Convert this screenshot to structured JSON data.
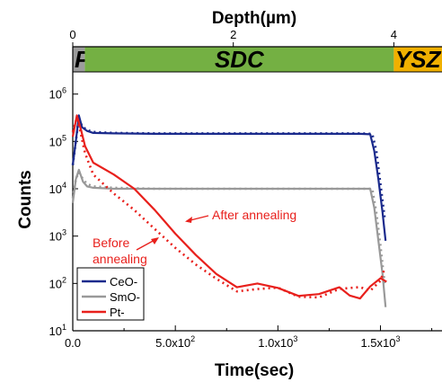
{
  "chart_data": {
    "type": "line",
    "xlabel": "Time(sec)",
    "ylabel": "Counts",
    "top_axis_label": "Depth(µm)",
    "xlim": [
      0,
      1800
    ],
    "ylim_log10": [
      1,
      7
    ],
    "yscale": "log",
    "top_xlim": [
      0,
      4.6
    ],
    "top_ticks": [
      "0",
      "2",
      "4"
    ],
    "top_tick_values": [
      0,
      2,
      4
    ],
    "x_ticks": [
      "0.0",
      "5.0x10",
      "1.0x10",
      "1.5x10"
    ],
    "x_tick_exponents": [
      "",
      "2",
      "3",
      "3"
    ],
    "x_tick_values": [
      0,
      500,
      1000,
      1500
    ],
    "y_tick_bases": [
      "10",
      "10",
      "10",
      "10",
      "10",
      "10"
    ],
    "y_tick_exponents": [
      "1",
      "2",
      "3",
      "4",
      "5",
      "6"
    ],
    "y_tick_values": [
      1,
      2,
      3,
      4,
      5,
      6
    ],
    "layers": [
      {
        "name": "Pt",
        "start": 0,
        "end": 0.15,
        "color": "#9c9c9c"
      },
      {
        "name": "SDC",
        "start": 0.15,
        "end": 4.0,
        "color": "#74b043"
      },
      {
        "name": "YSZ",
        "start": 4.0,
        "end": 4.6,
        "color": "#f0b000"
      }
    ],
    "legend": {
      "position": "bottom-left",
      "entries": [
        {
          "label": "CeO-",
          "color": "#1a2a8c"
        },
        {
          "label": "SmO-",
          "color": "#999999"
        },
        {
          "label": "Pt-",
          "color": "#e8201c"
        }
      ]
    },
    "annotations": {
      "after": "After annealing",
      "before_line1": "Before",
      "before_line2": "annealing",
      "color": "#e8201c"
    },
    "series": [
      {
        "name": "CeO-",
        "condition": "after",
        "color": "#1a2a8c",
        "x": [
          0,
          15,
          30,
          45,
          70,
          100,
          200,
          400,
          600,
          800,
          1000,
          1200,
          1400,
          1450,
          1470,
          1490,
          1510,
          1525
        ],
        "y_log10": [
          4.5,
          5.0,
          5.55,
          5.3,
          5.22,
          5.18,
          5.17,
          5.16,
          5.16,
          5.16,
          5.16,
          5.16,
          5.16,
          5.15,
          4.8,
          4.2,
          3.5,
          2.9
        ]
      },
      {
        "name": "CeO-",
        "condition": "before",
        "color": "#1a2a8c",
        "x": [
          0,
          15,
          30,
          45,
          70,
          100,
          200,
          400,
          600,
          800,
          1000,
          1200,
          1400,
          1460,
          1480,
          1500,
          1520
        ],
        "y_log10": [
          4.5,
          5.0,
          5.5,
          5.32,
          5.24,
          5.2,
          5.18,
          5.17,
          5.17,
          5.17,
          5.17,
          5.17,
          5.17,
          5.16,
          4.8,
          4.1,
          3.4
        ]
      },
      {
        "name": "SmO-",
        "condition": "after",
        "color": "#999999",
        "x": [
          0,
          15,
          30,
          50,
          70,
          100,
          200,
          400,
          600,
          800,
          1000,
          1200,
          1400,
          1450,
          1470,
          1490,
          1510,
          1525
        ],
        "y_log10": [
          3.7,
          4.2,
          4.4,
          4.15,
          4.05,
          4.02,
          4.0,
          4.0,
          4.0,
          4.0,
          4.0,
          4.0,
          4.0,
          4.0,
          3.6,
          2.9,
          2.2,
          1.5
        ]
      },
      {
        "name": "SmO-",
        "condition": "before",
        "color": "#999999",
        "x": [
          0,
          15,
          30,
          50,
          70,
          100,
          200,
          400,
          600,
          800,
          1000,
          1200,
          1400,
          1460,
          1480,
          1500,
          1520
        ],
        "y_log10": [
          3.8,
          4.2,
          4.35,
          4.2,
          4.1,
          4.05,
          4.02,
          4.0,
          4.0,
          4.0,
          4.0,
          4.0,
          4.0,
          4.0,
          3.5,
          2.8,
          2.0
        ]
      },
      {
        "name": "Pt-",
        "condition": "after",
        "color": "#e8201c",
        "x": [
          0,
          20,
          40,
          60,
          100,
          200,
          300,
          400,
          450,
          500,
          600,
          700,
          800,
          900,
          1000,
          1100,
          1200,
          1300,
          1350,
          1400,
          1450,
          1500,
          1530
        ],
        "y_log10": [
          5.1,
          5.55,
          5.25,
          4.9,
          4.55,
          4.3,
          4.0,
          3.55,
          3.3,
          3.05,
          2.6,
          2.2,
          2.0,
          1.9,
          1.85,
          1.85,
          1.8,
          1.8,
          1.75,
          1.8,
          1.9,
          2.0,
          2.1
        ]
      },
      {
        "name": "Pt-",
        "condition": "before",
        "color": "#e8201c",
        "x": [
          0,
          20,
          40,
          60,
          100,
          200,
          300,
          400,
          500,
          600,
          700,
          800,
          900,
          1000,
          1100,
          1200,
          1300,
          1400,
          1450,
          1500,
          1520
        ],
        "y_log10": [
          5.2,
          5.5,
          5.15,
          4.75,
          4.3,
          3.9,
          3.55,
          3.15,
          2.75,
          2.4,
          2.1,
          1.95,
          1.85,
          1.8,
          1.78,
          1.8,
          1.8,
          1.85,
          1.95,
          2.1,
          2.2
        ]
      }
    ]
  }
}
